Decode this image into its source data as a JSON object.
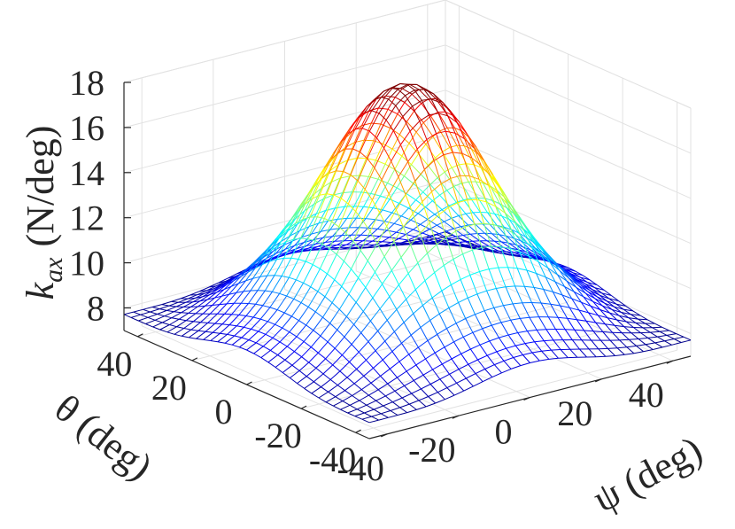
{
  "chart_data": {
    "type": "surface-mesh",
    "title": "",
    "xlabel": "ψ (deg)",
    "ylabel": "θ (deg)",
    "zlabel": "k_ax (N/deg)",
    "zlabel_main": "k",
    "zlabel_sub": "ax",
    "zlabel_units": "(N/deg)",
    "x_ticks": [
      "-40",
      "-20",
      "0",
      "20",
      "40"
    ],
    "y_ticks": [
      "40",
      "20",
      "0",
      "-20",
      "-40"
    ],
    "z_ticks": [
      "8",
      "10",
      "12",
      "14",
      "16",
      "18"
    ],
    "xlim": [
      -45,
      45
    ],
    "ylim": [
      -45,
      45
    ],
    "zlim": [
      7,
      18
    ],
    "grid": true,
    "colormap": "jet",
    "mesh": {
      "x_range": [
        -45,
        45
      ],
      "y_range": [
        -45,
        45
      ],
      "rows": 34,
      "cols": 34,
      "peak_value": 18,
      "corner_value": 7.6,
      "peaks": [
        [
          -9,
          10
        ],
        [
          9,
          -10
        ]
      ]
    }
  }
}
